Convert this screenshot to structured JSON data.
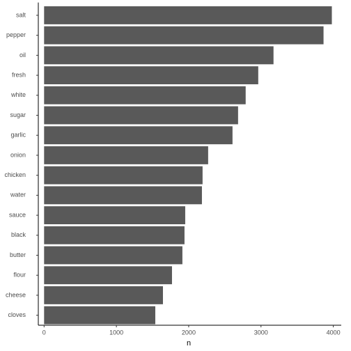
{
  "chart_data": {
    "type": "barh",
    "categories": [
      "salt",
      "pepper",
      "oil",
      "fresh",
      "white",
      "sugar",
      "garlic",
      "onion",
      "chicken",
      "water",
      "sauce",
      "black",
      "butter",
      "flour",
      "cheese",
      "cloves"
    ],
    "values": [
      3980,
      3865,
      3173,
      2962,
      2788,
      2683,
      2606,
      2269,
      2192,
      2183,
      1952,
      1942,
      1913,
      1769,
      1644,
      1538
    ],
    "color": "#595959",
    "x_label": "n",
    "xlim": [
      -80,
      4110
    ],
    "xticks": [
      0,
      1000,
      2000,
      3000,
      4000
    ],
    "grid": false
  }
}
